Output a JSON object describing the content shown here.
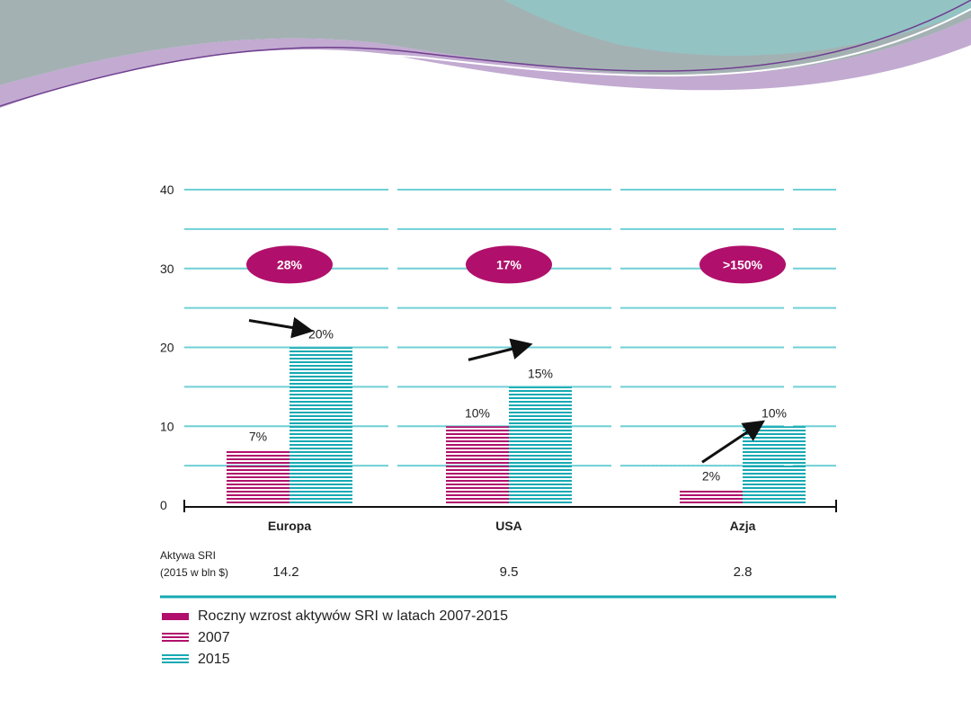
{
  "colors": {
    "magenta": "#b0106b",
    "teal": "#16a9b3",
    "grid": "#6fd0d6"
  },
  "chart_data": {
    "type": "bar",
    "title": "",
    "ylabel": "",
    "xlabel": "",
    "ylim": [
      0,
      40
    ],
    "yticks": [
      "40",
      "30",
      "20",
      "10",
      "0"
    ],
    "categories": [
      "Europa",
      "USA",
      "Azja"
    ],
    "series": [
      {
        "name": "2007",
        "values": [
          7,
          10,
          2
        ],
        "labels": [
          "7%",
          "10%",
          "2%"
        ]
      },
      {
        "name": "2015",
        "values": [
          20,
          15,
          10
        ],
        "labels": [
          "20%",
          "15%",
          "10%"
        ]
      }
    ],
    "growth_bubbles": [
      "28%",
      "17%",
      ">150%"
    ],
    "assets_row": {
      "label_line1": "Aktywa SRI",
      "label_line2": "(2015 w bln $)",
      "values": [
        "14.2",
        "9.5",
        "2.8"
      ]
    },
    "legend": {
      "growth": "Roczny wzrost aktywów SRI w latach 2007-2015",
      "y2007": "2007",
      "y2015": "2015"
    }
  }
}
